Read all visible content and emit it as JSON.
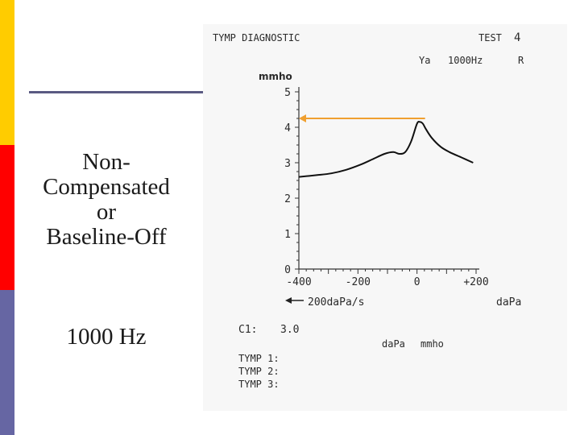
{
  "slide": {
    "title_lines": [
      "Non-",
      "Compensated",
      "or",
      "Baseline-Off"
    ],
    "frequency": "1000 Hz"
  },
  "colors": {
    "bar_top": "#ffcc00",
    "bar_middle": "#ff0000",
    "bar_bottom": "#6666a3",
    "rule": "#5a5a82",
    "arrow": "#f0a030",
    "curve": "#111111"
  },
  "printout": {
    "header_left": "TYMP DIAGNOSTIC",
    "header_right": "TEST",
    "test_number": "4",
    "ya_label": "Ya",
    "probe_freq": "1000Hz",
    "ear": "R",
    "yunit": "mmho",
    "xunit": "daPa",
    "rate_label": "200daPa/s",
    "c1_label": "C1:",
    "c1_value": "3.0",
    "col_dapa": "daPa",
    "col_mmho": "mmho",
    "tymp_rows": [
      "TYMP 1:",
      "TYMP 2:",
      "TYMP 3:"
    ]
  },
  "chart_data": {
    "type": "line",
    "title": "TYMP DIAGNOSTIC",
    "xlabel": "daPa",
    "ylabel": "mmho",
    "xlim": [
      -400,
      200
    ],
    "ylim": [
      0,
      5
    ],
    "xticks": [
      -400,
      -200,
      0,
      200
    ],
    "xtick_labels": [
      "-400",
      "-200",
      "0",
      "+200"
    ],
    "yticks": [
      0,
      1,
      2,
      3,
      4,
      5
    ],
    "ytick_labels": [
      "0",
      "1",
      "2",
      "3",
      "4",
      "5"
    ],
    "series": [
      {
        "x": [
          -400,
          -340,
          -290,
          -240,
          -190,
          -150,
          -110,
          -80,
          -60,
          -40,
          -20,
          0,
          10,
          20,
          30,
          50,
          80,
          110,
          150,
          190
        ],
        "y": [
          2.6,
          2.65,
          2.7,
          2.8,
          2.95,
          3.1,
          3.25,
          3.3,
          3.25,
          3.3,
          3.6,
          4.1,
          4.15,
          4.1,
          3.95,
          3.7,
          3.45,
          3.3,
          3.15,
          3.0
        ]
      }
    ],
    "annotations": [
      {
        "type": "arrow",
        "from_x": 0,
        "to_x": -400,
        "y": 4.25
      }
    ]
  }
}
